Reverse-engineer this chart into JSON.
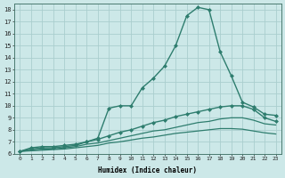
{
  "xlabel": "Humidex (Indice chaleur)",
  "ylabel": "",
  "xlim": [
    -0.5,
    23.5
  ],
  "ylim": [
    6,
    18.5
  ],
  "xticks": [
    0,
    1,
    2,
    3,
    4,
    5,
    6,
    7,
    8,
    9,
    10,
    11,
    12,
    13,
    14,
    15,
    16,
    17,
    18,
    19,
    20,
    21,
    22,
    23
  ],
  "yticks": [
    6,
    7,
    8,
    9,
    10,
    11,
    12,
    13,
    14,
    15,
    16,
    17,
    18
  ],
  "line_color": "#2e7d6e",
  "bg_color": "#cce8e8",
  "grid_color": "#aacece",
  "series": [
    {
      "x": [
        0,
        1,
        2,
        3,
        4,
        5,
        6,
        7,
        8,
        9,
        10,
        11,
        12,
        13,
        14,
        15,
        16,
        17,
        18,
        19,
        20,
        21,
        22,
        23
      ],
      "y": [
        6.2,
        6.5,
        6.6,
        6.6,
        6.7,
        6.8,
        7.0,
        7.3,
        9.8,
        10.0,
        10.0,
        11.5,
        12.3,
        13.3,
        15.0,
        17.5,
        18.2,
        18.0,
        14.5,
        12.5,
        10.3,
        9.9,
        9.3,
        9.2
      ],
      "marker": "D",
      "markersize": 2.0,
      "linewidth": 1.0,
      "has_marker": true
    },
    {
      "x": [
        0,
        1,
        2,
        3,
        4,
        5,
        6,
        7,
        8,
        9,
        10,
        11,
        12,
        13,
        14,
        15,
        16,
        17,
        18,
        19,
        20,
        21,
        22,
        23
      ],
      "y": [
        6.2,
        6.4,
        6.5,
        6.5,
        6.6,
        6.7,
        7.0,
        7.2,
        7.5,
        7.8,
        8.0,
        8.3,
        8.6,
        8.8,
        9.1,
        9.3,
        9.5,
        9.7,
        9.9,
        10.0,
        10.0,
        9.7,
        9.0,
        8.7
      ],
      "marker": "D",
      "markersize": 2.0,
      "linewidth": 1.0,
      "has_marker": true
    },
    {
      "x": [
        0,
        1,
        2,
        3,
        4,
        5,
        6,
        7,
        8,
        9,
        10,
        11,
        12,
        13,
        14,
        15,
        16,
        17,
        18,
        19,
        20,
        21,
        22,
        23
      ],
      "y": [
        6.2,
        6.3,
        6.4,
        6.4,
        6.5,
        6.6,
        6.8,
        6.9,
        7.1,
        7.3,
        7.5,
        7.7,
        7.9,
        8.0,
        8.2,
        8.4,
        8.6,
        8.7,
        8.9,
        9.0,
        9.0,
        8.8,
        8.5,
        8.4
      ],
      "marker": null,
      "markersize": 0,
      "linewidth": 0.9,
      "has_marker": false
    },
    {
      "x": [
        0,
        1,
        2,
        3,
        4,
        5,
        6,
        7,
        8,
        9,
        10,
        11,
        12,
        13,
        14,
        15,
        16,
        17,
        18,
        19,
        20,
        21,
        22,
        23
      ],
      "y": [
        6.2,
        6.25,
        6.3,
        6.35,
        6.4,
        6.5,
        6.6,
        6.7,
        6.9,
        7.0,
        7.15,
        7.3,
        7.4,
        7.55,
        7.7,
        7.8,
        7.9,
        8.0,
        8.1,
        8.1,
        8.05,
        7.9,
        7.75,
        7.65
      ],
      "marker": null,
      "markersize": 0,
      "linewidth": 0.9,
      "has_marker": false
    }
  ]
}
